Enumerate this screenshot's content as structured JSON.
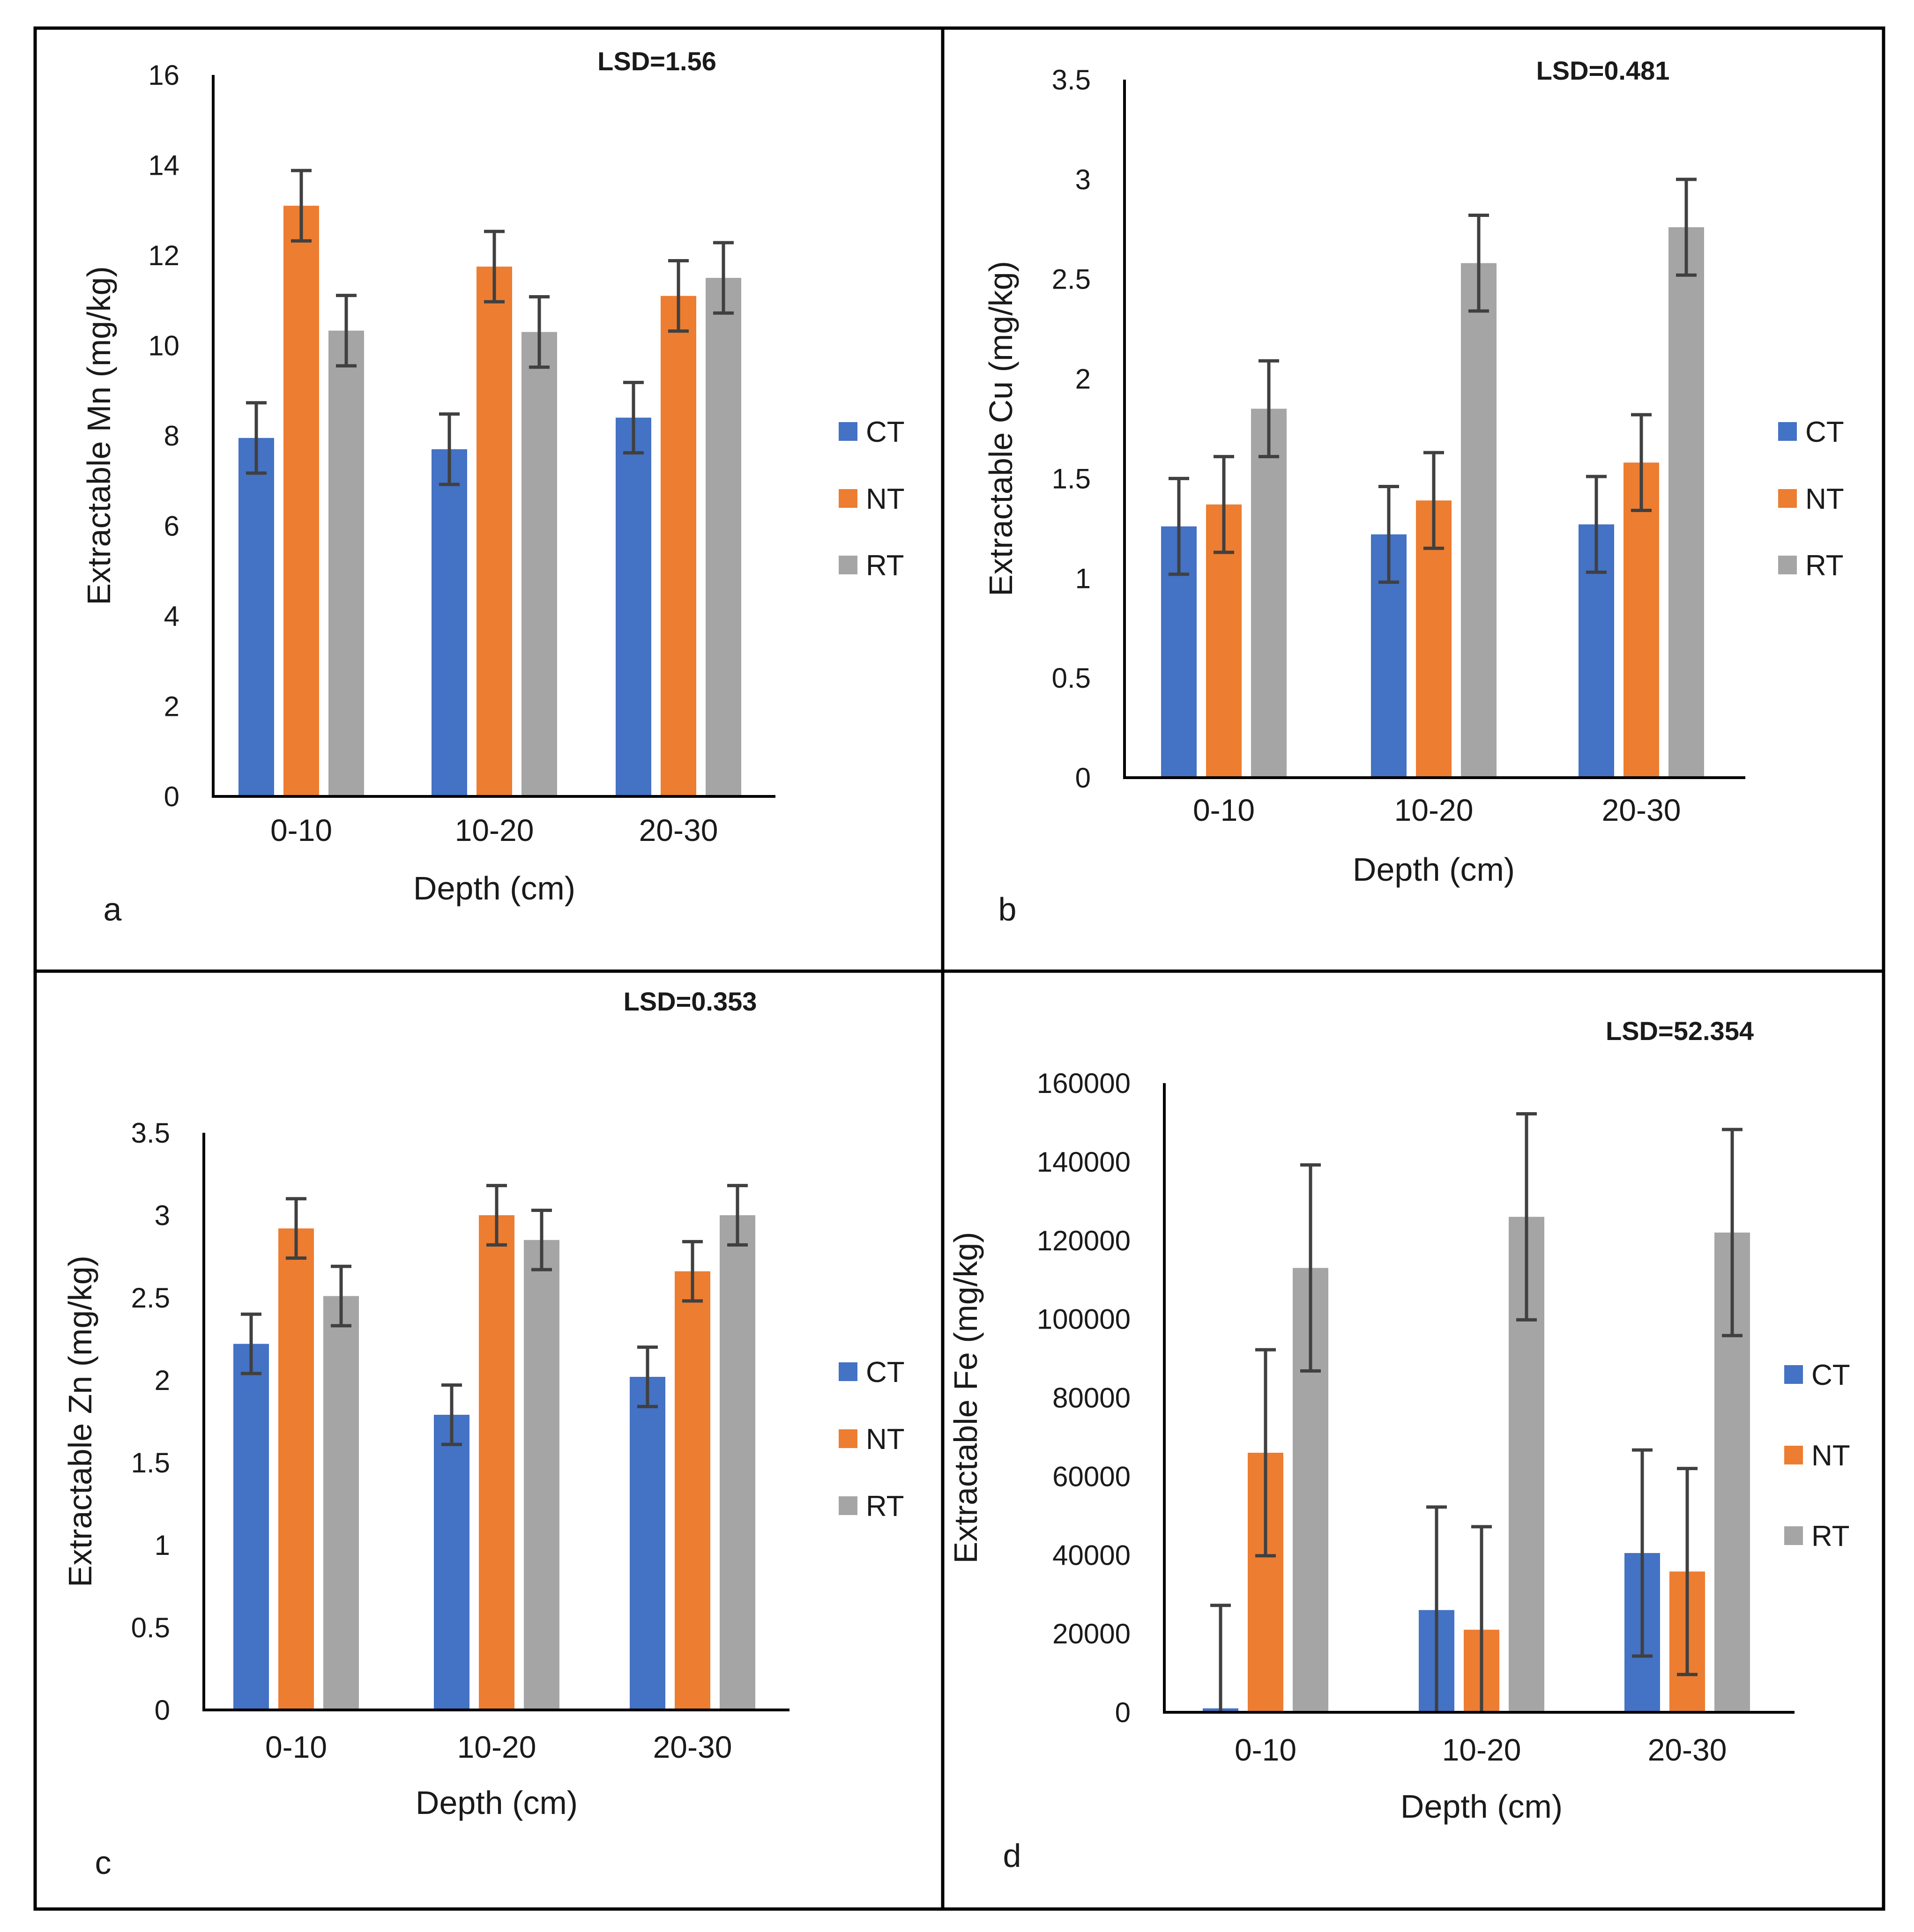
{
  "colors": {
    "CT": "#4472c4",
    "NT": "#ed7d31",
    "RT": "#a5a5a5",
    "errorbar": "#404040",
    "axis": "#000000",
    "frame": "#000000"
  },
  "chart_data": [
    {
      "panel": "a",
      "type": "bar",
      "lsd_label": "LSD=1.56",
      "xlabel": "Depth (cm)",
      "ylabel": "Extractable Mn (mg/kg)",
      "ylim": [
        0,
        16
      ],
      "yticks": [
        "0",
        "2",
        "4",
        "6",
        "8",
        "10",
        "12",
        "14",
        "16"
      ],
      "categories": [
        "0-10",
        "10-20",
        "20-30"
      ],
      "legend": [
        "CT",
        "NT",
        "RT"
      ],
      "series": [
        {
          "name": "CT",
          "values": [
            7.95,
            7.7,
            8.4
          ],
          "errors": [
            0.78,
            0.78,
            0.78
          ]
        },
        {
          "name": "NT",
          "values": [
            13.1,
            11.75,
            11.1
          ],
          "errors": [
            0.78,
            0.78,
            0.78
          ]
        },
        {
          "name": "RT",
          "values": [
            10.33,
            10.3,
            11.5
          ],
          "errors": [
            0.78,
            0.78,
            0.78
          ]
        }
      ]
    },
    {
      "panel": "b",
      "type": "bar",
      "lsd_label": "LSD=0.481",
      "xlabel": "Depth (cm)",
      "ylabel": "Extractable Cu (mg/kg)",
      "ylim": [
        0,
        3.5
      ],
      "yticks": [
        "0",
        "0.5",
        "1",
        "1.5",
        "2",
        "2.5",
        "3",
        "3.5"
      ],
      "categories": [
        "0-10",
        "10-20",
        "20-30"
      ],
      "legend": [
        "CT",
        "NT",
        "RT"
      ],
      "series": [
        {
          "name": "CT",
          "values": [
            1.26,
            1.22,
            1.27
          ],
          "errors": [
            0.24,
            0.24,
            0.24
          ]
        },
        {
          "name": "NT",
          "values": [
            1.37,
            1.39,
            1.58
          ],
          "errors": [
            0.24,
            0.24,
            0.24
          ]
        },
        {
          "name": "RT",
          "values": [
            1.85,
            2.58,
            2.76
          ],
          "errors": [
            0.24,
            0.24,
            0.24
          ]
        }
      ]
    },
    {
      "panel": "c",
      "type": "bar",
      "lsd_label": "LSD=0.353",
      "xlabel": "Depth (cm)",
      "ylabel": "Extractable Zn (mg/kg)",
      "ylim": [
        0,
        3.5
      ],
      "yticks": [
        "0",
        "0.5",
        "1",
        "1.5",
        "2",
        "2.5",
        "3",
        "3.5"
      ],
      "categories": [
        "0-10",
        "10-20",
        "20-30"
      ],
      "legend": [
        "CT",
        "NT",
        "RT"
      ],
      "series": [
        {
          "name": "CT",
          "values": [
            2.22,
            1.79,
            2.02
          ],
          "errors": [
            0.18,
            0.18,
            0.18
          ]
        },
        {
          "name": "NT",
          "values": [
            2.92,
            3.0,
            2.66
          ],
          "errors": [
            0.18,
            0.18,
            0.18
          ]
        },
        {
          "name": "RT",
          "values": [
            2.51,
            2.85,
            3.0
          ],
          "errors": [
            0.18,
            0.18,
            0.18
          ]
        }
      ]
    },
    {
      "panel": "d",
      "type": "bar",
      "lsd_label": "LSD=52.354",
      "xlabel": "Depth (cm)",
      "ylabel": "Extractable Fe (mg/kg)",
      "ylim": [
        0,
        160000
      ],
      "yticks": [
        "0",
        "20000",
        "40000",
        "60000",
        "80000",
        "100000",
        "120000",
        "140000",
        "160000"
      ],
      "categories": [
        "0-10",
        "10-20",
        "20-30"
      ],
      "legend": [
        "CT",
        "NT",
        "RT"
      ],
      "series": [
        {
          "name": "CT",
          "values": [
            1000,
            26000,
            40500
          ],
          "errors": [
            26200,
            26200,
            26200
          ]
        },
        {
          "name": "NT",
          "values": [
            66000,
            21000,
            35800
          ],
          "errors": [
            26200,
            26200,
            26200
          ]
        },
        {
          "name": "RT",
          "values": [
            113000,
            126000,
            122000
          ],
          "errors": [
            26200,
            26200,
            26200
          ]
        }
      ]
    }
  ]
}
